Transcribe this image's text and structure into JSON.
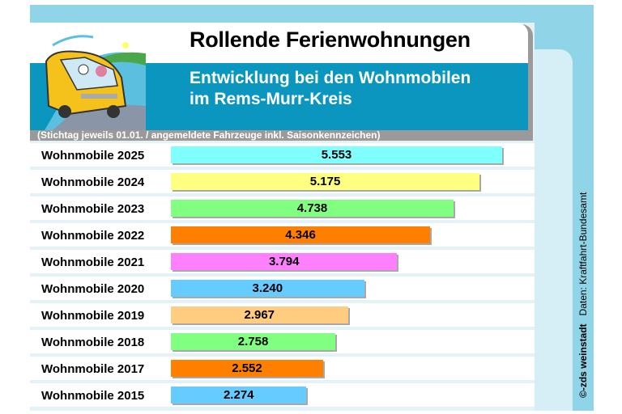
{
  "title": "Rollende Ferienwohnungen",
  "subtitle_line1": "Entwicklung bei den Wohnmobilen",
  "subtitle_line2": "im Rems-Murr-Kreis",
  "caption": "(Stichtag jeweils 01.01.  /  angemeldete Fahrzeuge inkl. Saisonkennzeichen)",
  "credit": "©-zds  weinstadt",
  "source": "Daten: Kraftfahrt-Bundesamt",
  "chart_data": {
    "type": "bar",
    "orientation": "horizontal",
    "title": "Rollende Ferienwohnungen",
    "categories": [
      "Wohnmobile 2025",
      "Wohnmobile 2024",
      "Wohnmobile 2023",
      "Wohnmobile 2022",
      "Wohnmobile 2021",
      "Wohnmobile 2020",
      "Wohnmobile 2019",
      "Wohnmobile 2018",
      "Wohnmobile 2017",
      "Wohnmobile 2015"
    ],
    "values": [
      5553,
      5175,
      4738,
      4346,
      3794,
      3240,
      2967,
      2758,
      2552,
      2274
    ],
    "labels": [
      "5.553",
      "5.175",
      "4.738",
      "4.346",
      "3.794",
      "3.240",
      "2.967",
      "2.758",
      "2.552",
      "2.274"
    ],
    "colors": [
      "#80ffff",
      "#ffff80",
      "#80ff80",
      "#ff8000",
      "#ff80ff",
      "#66ccff",
      "#ffcc80",
      "#80ff80",
      "#ff8000",
      "#66ccff"
    ],
    "grid": false
  }
}
